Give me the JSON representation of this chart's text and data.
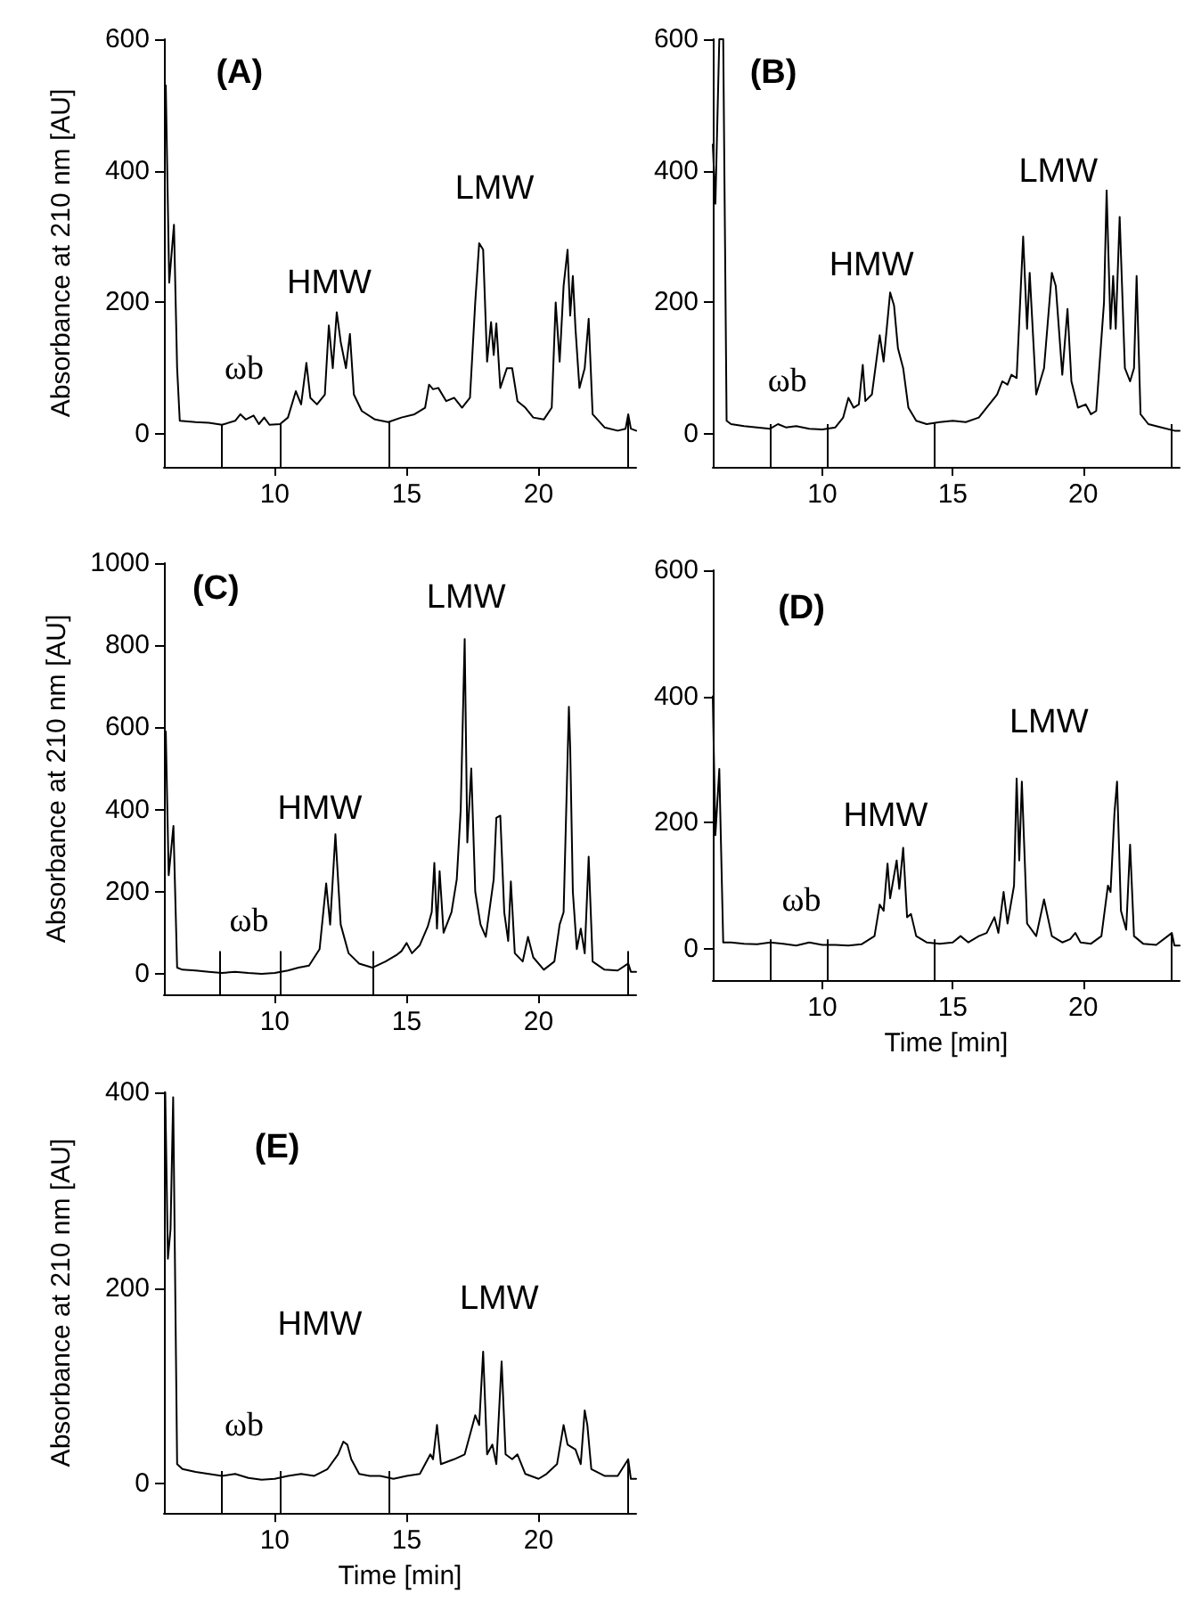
{
  "chart_data": [
    {
      "type": "line",
      "ylabel": "Absorbance at 210 nm [AU]",
      "xlim": [
        5.8,
        23.7
      ],
      "xticks": [
        10,
        15,
        20
      ],
      "ylim": [
        -50,
        600
      ],
      "yticks": [
        0,
        200,
        400,
        600
      ],
      "grid": false,
      "marker": "none",
      "line_style": "solid",
      "annotations": [
        "(A)",
        "ωb",
        "HMW",
        "LMW"
      ],
      "ref_lines": [
        {
          "axis": "x",
          "value": 8.0
        },
        {
          "axis": "x",
          "value": 10.2
        },
        {
          "axis": "x",
          "value": 14.3
        },
        {
          "axis": "x",
          "value": 23.4
        }
      ],
      "series": [
        {
          "color": "#000000",
          "x": [
            5.87,
            6.0,
            6.18,
            6.3,
            6.4,
            7,
            7.5,
            8,
            8.5,
            8.7,
            8.9,
            9.2,
            9.4,
            9.6,
            9.8,
            10.2,
            10.5,
            10.8,
            11.0,
            11.2,
            11.35,
            11.6,
            11.9,
            12.05,
            12.2,
            12.35,
            12.5,
            12.7,
            12.85,
            13.0,
            13.3,
            13.8,
            14.3,
            14.8,
            15.3,
            15.7,
            15.85,
            16.0,
            16.2,
            16.5,
            16.8,
            17.1,
            17.4,
            17.6,
            17.75,
            17.9,
            18.05,
            18.2,
            18.3,
            18.4,
            18.55,
            18.8,
            19.0,
            19.2,
            19.5,
            19.8,
            20.2,
            20.5,
            20.65,
            20.8,
            20.95,
            21.1,
            21.2,
            21.3,
            21.4,
            21.55,
            21.75,
            21.9,
            22.05,
            22.5,
            23.0,
            23.3,
            23.4,
            23.5,
            23.7
          ],
          "values": [
            530,
            230,
            318,
            100,
            20,
            18,
            17,
            14,
            20,
            30,
            22,
            28,
            15,
            25,
            14,
            15,
            25,
            65,
            45,
            108,
            55,
            45,
            60,
            165,
            100,
            185,
            140,
            100,
            152,
            60,
            35,
            22,
            18,
            25,
            30,
            40,
            75,
            68,
            70,
            50,
            55,
            40,
            55,
            200,
            290,
            280,
            110,
            170,
            120,
            168,
            70,
            100,
            100,
            50,
            40,
            25,
            22,
            40,
            200,
            110,
            225,
            280,
            180,
            240,
            160,
            70,
            100,
            175,
            30,
            10,
            5,
            8,
            30,
            8,
            5
          ]
        }
      ]
    },
    {
      "type": "line",
      "xlim": [
        5.8,
        23.7
      ],
      "xticks": [
        10,
        15,
        20
      ],
      "ylim": [
        -50,
        600
      ],
      "yticks": [
        0,
        200,
        400,
        600
      ],
      "grid": false,
      "marker": "none",
      "line_style": "solid",
      "annotations": [
        "(B)",
        "ωb",
        "HMW",
        "LMW"
      ],
      "ref_lines": [
        {
          "axis": "x",
          "value": 8.0
        },
        {
          "axis": "x",
          "value": 10.2
        },
        {
          "axis": "x",
          "value": 14.3
        },
        {
          "axis": "x",
          "value": 23.4
        }
      ],
      "series": [
        {
          "color": "#000000",
          "x": [
            5.8,
            5.9,
            6.05,
            6.2,
            6.33,
            6.5,
            7,
            7.5,
            8,
            8.3,
            8.6,
            9,
            9.5,
            10,
            10.5,
            10.8,
            11.0,
            11.2,
            11.4,
            11.55,
            11.65,
            11.9,
            12.2,
            12.35,
            12.6,
            12.75,
            12.9,
            13.1,
            13.3,
            13.6,
            14,
            14.5,
            15,
            15.5,
            16,
            16.4,
            16.7,
            16.9,
            17.1,
            17.25,
            17.45,
            17.7,
            17.85,
            17.95,
            18.2,
            18.5,
            18.8,
            18.95,
            19.2,
            19.4,
            19.55,
            19.8,
            20.1,
            20.3,
            20.5,
            20.8,
            20.9,
            21.05,
            21.15,
            21.25,
            21.4,
            21.6,
            21.8,
            21.95,
            22.05,
            22.2,
            22.5,
            23.0,
            23.5,
            23.7
          ],
          "values": [
            440,
            350,
            600,
            600,
            20,
            15,
            12,
            10,
            8,
            15,
            10,
            12,
            8,
            7,
            10,
            25,
            55,
            40,
            45,
            105,
            50,
            60,
            150,
            110,
            215,
            195,
            130,
            100,
            40,
            20,
            15,
            18,
            20,
            18,
            25,
            45,
            60,
            80,
            75,
            90,
            85,
            300,
            160,
            245,
            60,
            100,
            245,
            225,
            90,
            190,
            80,
            40,
            45,
            30,
            35,
            200,
            370,
            160,
            240,
            160,
            330,
            100,
            80,
            100,
            240,
            30,
            15,
            10,
            5,
            5
          ]
        }
      ]
    },
    {
      "type": "line",
      "ylabel": "Absorbance at 210 nm [AU]",
      "xlim": [
        5.8,
        23.7
      ],
      "xticks": [
        10,
        15,
        20
      ],
      "ylim": [
        -50,
        1000
      ],
      "yticks": [
        0,
        200,
        400,
        600,
        800,
        1000
      ],
      "grid": false,
      "marker": "none",
      "line_style": "solid",
      "annotations": [
        "(C)",
        "ωb",
        "HMW",
        "LMW"
      ],
      "ref_lines": [
        {
          "axis": "x",
          "value": 7.9
        },
        {
          "axis": "x",
          "value": 10.2
        },
        {
          "axis": "x",
          "value": 13.7
        },
        {
          "axis": "x",
          "value": 23.4
        }
      ],
      "series": [
        {
          "color": "#000000",
          "x": [
            5.87,
            5.98,
            6.16,
            6.3,
            6.5,
            7,
            7.5,
            8,
            8.5,
            9,
            9.5,
            10,
            10.5,
            10.9,
            11.3,
            11.7,
            11.95,
            12.1,
            12.3,
            12.5,
            12.8,
            13.2,
            13.7,
            14.2,
            14.6,
            14.8,
            15.0,
            15.2,
            15.5,
            15.8,
            15.95,
            16.05,
            16.15,
            16.25,
            16.4,
            16.7,
            16.9,
            17.05,
            17.2,
            17.3,
            17.45,
            17.6,
            17.8,
            18.0,
            18.3,
            18.4,
            18.55,
            18.7,
            18.85,
            18.95,
            19.1,
            19.4,
            19.6,
            19.8,
            20.2,
            20.6,
            20.8,
            20.95,
            21.15,
            21.2,
            21.3,
            21.45,
            21.6,
            21.75,
            21.9,
            22.05,
            22.5,
            23,
            23.4,
            23.5,
            23.7
          ],
          "values": [
            590,
            240,
            360,
            15,
            10,
            8,
            5,
            2,
            5,
            2,
            0,
            2,
            8,
            15,
            20,
            60,
            220,
            120,
            340,
            120,
            50,
            25,
            15,
            30,
            45,
            55,
            75,
            50,
            70,
            115,
            150,
            270,
            110,
            250,
            100,
            150,
            230,
            400,
            815,
            320,
            500,
            200,
            120,
            90,
            230,
            380,
            385,
            150,
            80,
            225,
            50,
            30,
            90,
            40,
            10,
            30,
            120,
            150,
            650,
            550,
            200,
            60,
            110,
            50,
            285,
            30,
            10,
            8,
            25,
            5,
            5
          ]
        }
      ]
    },
    {
      "type": "line",
      "xlabel": "Time [min]",
      "xlim": [
        5.8,
        23.7
      ],
      "xticks": [
        10,
        15,
        20
      ],
      "ylim": [
        -50,
        600
      ],
      "yticks": [
        0,
        200,
        400,
        600
      ],
      "grid": false,
      "marker": "none",
      "line_style": "solid",
      "annotations": [
        "(D)",
        "ωb",
        "HMW",
        "LMW"
      ],
      "ref_lines": [
        {
          "axis": "x",
          "value": 8.0
        },
        {
          "axis": "x",
          "value": 10.2
        },
        {
          "axis": "x",
          "value": 14.3
        },
        {
          "axis": "x",
          "value": 23.4
        }
      ],
      "series": [
        {
          "color": "#000000",
          "x": [
            5.8,
            5.9,
            6.05,
            6.2,
            6.5,
            7,
            7.5,
            8,
            8.5,
            9,
            9.5,
            10,
            10.5,
            11,
            11.5,
            12,
            12.2,
            12.35,
            12.5,
            12.6,
            12.85,
            12.95,
            13.1,
            13.25,
            13.4,
            13.6,
            14,
            14.5,
            15,
            15.3,
            15.6,
            16,
            16.3,
            16.6,
            16.75,
            16.95,
            17.1,
            17.35,
            17.45,
            17.55,
            17.65,
            17.85,
            18.2,
            18.5,
            18.8,
            19.2,
            19.5,
            19.7,
            19.9,
            20.3,
            20.7,
            20.95,
            21.05,
            21.2,
            21.3,
            21.45,
            21.65,
            21.8,
            21.95,
            22.3,
            22.8,
            23.4,
            23.5,
            23.7
          ],
          "values": [
            400,
            180,
            285,
            10,
            10,
            8,
            7,
            10,
            8,
            5,
            10,
            6,
            6,
            5,
            7,
            20,
            70,
            60,
            135,
            80,
            140,
            95,
            160,
            50,
            55,
            20,
            10,
            8,
            10,
            20,
            10,
            20,
            25,
            50,
            25,
            90,
            40,
            100,
            270,
            140,
            265,
            40,
            20,
            78,
            20,
            10,
            15,
            25,
            10,
            8,
            20,
            100,
            90,
            215,
            265,
            60,
            30,
            165,
            20,
            8,
            6,
            25,
            5,
            5
          ]
        }
      ]
    },
    {
      "type": "line",
      "xlabel": "Time [min]",
      "ylabel": "Absorbance at 210 nm [AU]",
      "xlim": [
        5.8,
        23.7
      ],
      "xticks": [
        10,
        15,
        20
      ],
      "ylim": [
        -30,
        400
      ],
      "yticks": [
        0,
        200,
        400
      ],
      "grid": false,
      "marker": "none",
      "line_style": "solid",
      "annotations": [
        "(E)",
        "ωb",
        "HMW",
        "LMW"
      ],
      "ref_lines": [
        {
          "axis": "x",
          "value": 8.0
        },
        {
          "axis": "x",
          "value": 10.2
        },
        {
          "axis": "x",
          "value": 14.3
        },
        {
          "axis": "x",
          "value": 23.4
        }
      ],
      "series": [
        {
          "color": "#000000",
          "x": [
            5.85,
            5.95,
            6.05,
            6.15,
            6.3,
            6.5,
            7,
            7.5,
            8,
            8.5,
            9,
            9.5,
            10,
            10.5,
            11,
            11.5,
            12,
            12.4,
            12.6,
            12.75,
            12.9,
            13.2,
            13.6,
            14,
            14.5,
            15,
            15.5,
            15.9,
            16.0,
            16.15,
            16.3,
            16.8,
            17.2,
            17.6,
            17.75,
            17.9,
            18.05,
            18.25,
            18.4,
            18.6,
            18.75,
            19.0,
            19.2,
            19.5,
            20.0,
            20.3,
            20.7,
            20.95,
            21.1,
            21.4,
            21.6,
            21.75,
            21.85,
            22.0,
            22.5,
            23,
            23.4,
            23.5,
            23.7
          ],
          "values": [
            400,
            230,
            260,
            395,
            20,
            15,
            12,
            10,
            8,
            10,
            6,
            4,
            5,
            8,
            10,
            8,
            15,
            30,
            43,
            40,
            25,
            10,
            8,
            8,
            5,
            8,
            10,
            30,
            25,
            60,
            20,
            25,
            30,
            70,
            60,
            135,
            30,
            40,
            20,
            125,
            30,
            25,
            30,
            10,
            5,
            10,
            20,
            60,
            40,
            35,
            20,
            75,
            60,
            15,
            8,
            8,
            25,
            5,
            5
          ]
        }
      ]
    }
  ]
}
